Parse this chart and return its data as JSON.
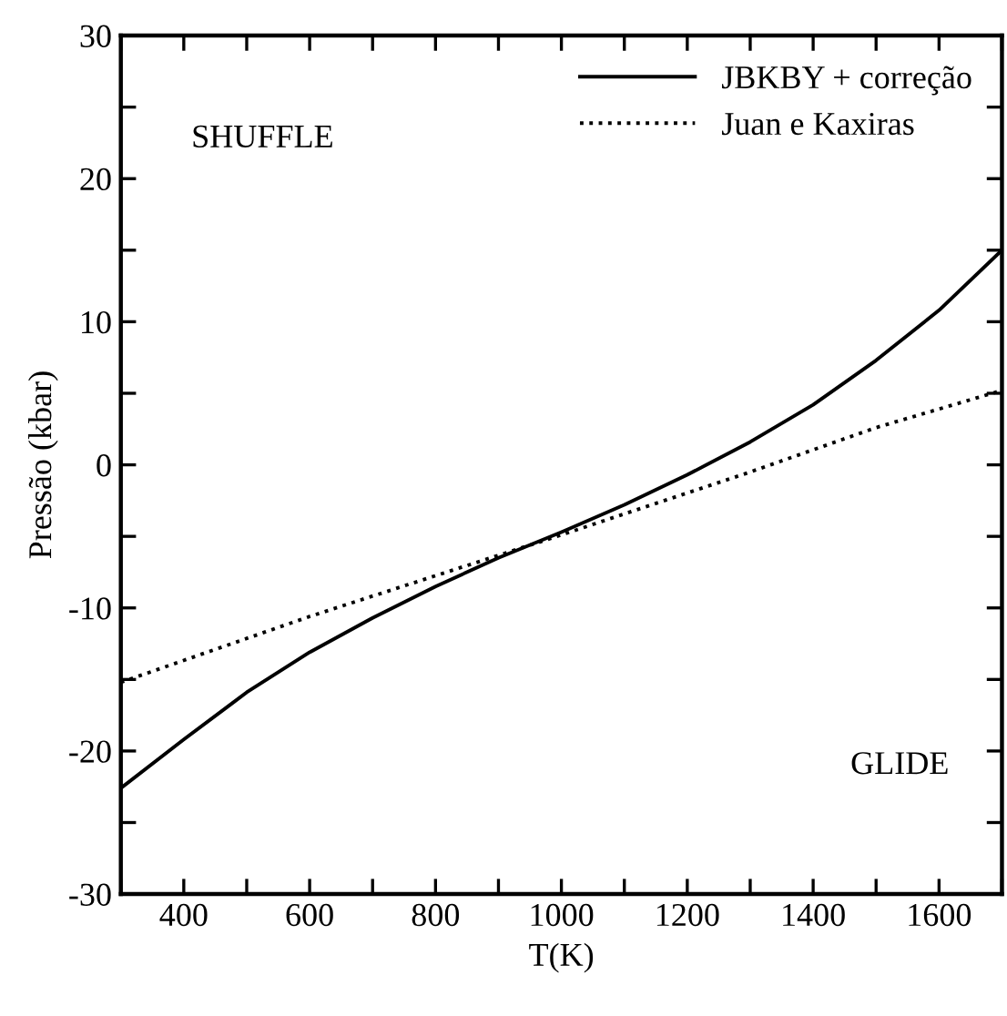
{
  "chart_data": {
    "type": "line",
    "xlabel": "T(K)",
    "ylabel": "Pressão (kbar)",
    "xlim": [
      300,
      1700
    ],
    "ylim": [
      -30,
      30
    ],
    "xticks": [
      {
        "value": 300,
        "label": null
      },
      400,
      {
        "value": 500,
        "label": null
      },
      600,
      {
        "value": 700,
        "label": null
      },
      800,
      {
        "value": 900,
        "label": null
      },
      1000,
      {
        "value": 1100,
        "label": null
      },
      1200,
      {
        "value": 1300,
        "label": null
      },
      1400,
      {
        "value": 1500,
        "label": null
      },
      1600,
      {
        "value": 1700,
        "label": null
      }
    ],
    "yticks": [
      -30,
      {
        "value": -25,
        "label": null
      },
      -20,
      {
        "value": -15,
        "label": null
      },
      -10,
      {
        "value": -5,
        "label": null
      },
      0,
      {
        "value": 5,
        "label": null
      },
      10,
      {
        "value": 15,
        "label": null
      },
      20,
      {
        "value": 25,
        "label": null
      },
      30
    ],
    "grid": false,
    "legend": "top right",
    "marker": "none",
    "annotations": [
      "SHUFFLE",
      "GLIDE"
    ],
    "series": [
      {
        "name": "JBKBY + correção",
        "color": "#000000",
        "line_style": "solid",
        "x": [
          300,
          400,
          500,
          600,
          700,
          800,
          900,
          1000,
          1100,
          1200,
          1300,
          1400,
          1500,
          1600,
          1700
        ],
        "values": [
          -22.6,
          -19.2,
          -15.9,
          -13.1,
          -10.7,
          -8.5,
          -6.5,
          -4.7,
          -2.8,
          -0.7,
          1.6,
          4.2,
          7.3,
          10.8,
          15.0
        ]
      },
      {
        "name": "Juan e Kaxiras",
        "color": "#000000",
        "line_style": "dotted",
        "x": [
          300,
          600,
          1000,
          1300,
          1500,
          1700
        ],
        "values": [
          -15.2,
          -10.6,
          -4.9,
          -0.5,
          2.6,
          5.2
        ]
      }
    ]
  }
}
